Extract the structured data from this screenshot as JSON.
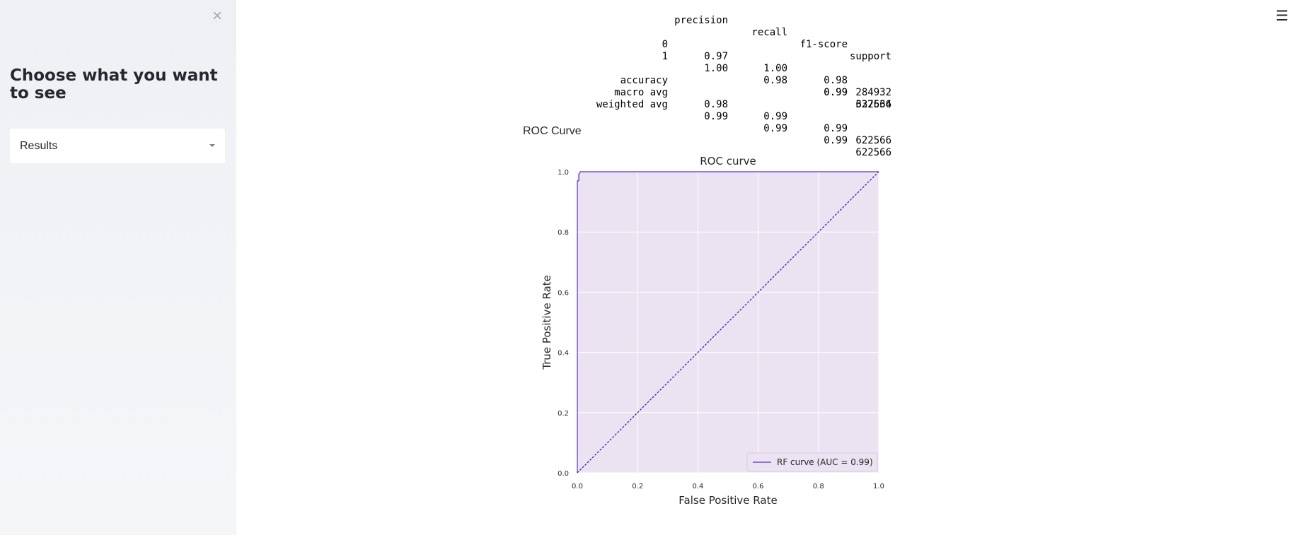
{
  "sidebar": {
    "close_icon": "close-icon",
    "title": "Choose what you want to see",
    "select": {
      "value": "Results",
      "icon": "chevron-down-icon"
    }
  },
  "header": {
    "menu_icon": "hamburger-menu-icon",
    "menu_glyph": "☰",
    "close_glyph": "×"
  },
  "report": {
    "columns": [
      "precision",
      "recall",
      "f1-score",
      "support"
    ],
    "class_rows": [
      {
        "label": "0",
        "precision": "0.97",
        "recall": "1.00",
        "f1": "0.98",
        "support": "284932"
      },
      {
        "label": "1",
        "precision": "1.00",
        "recall": "0.98",
        "f1": "0.99",
        "support": "337634"
      }
    ],
    "summary_rows": [
      {
        "label": "accuracy",
        "precision": "",
        "recall": "",
        "f1": "0.99",
        "support": "622566"
      },
      {
        "label": "macro avg",
        "precision": "0.98",
        "recall": "0.99",
        "f1": "0.99",
        "support": "622566"
      },
      {
        "label": "weighted avg",
        "precision": "0.99",
        "recall": "0.99",
        "f1": "0.99",
        "support": "622566"
      }
    ]
  },
  "roc_section": {
    "heading": "ROC Curve"
  },
  "chart_data": {
    "type": "line",
    "title": "ROC curve",
    "xlabel": "False Positive Rate",
    "ylabel": "True Positive Rate",
    "xlim": [
      0.0,
      1.0
    ],
    "ylim": [
      0.0,
      1.0
    ],
    "xticks": [
      "0.0",
      "0.2",
      "0.4",
      "0.6",
      "0.8",
      "1.0"
    ],
    "yticks": [
      "0.0",
      "0.2",
      "0.4",
      "0.6",
      "0.8",
      "1.0"
    ],
    "grid": true,
    "legend_position": "lower-right",
    "background_color": "#ebe3f2",
    "series": [
      {
        "name": "RF curve (AUC = 0.99)",
        "color": "#5b2fc9",
        "style": "solid",
        "x": [
          0.0,
          0.0,
          0.0,
          0.005,
          0.005,
          0.01,
          1.0
        ],
        "y": [
          0.0,
          0.5,
          0.97,
          0.97,
          0.99,
          1.0,
          1.0
        ]
      },
      {
        "name": "",
        "color": "#2b1a9a",
        "style": "dashed",
        "x": [
          0.0,
          1.0
        ],
        "y": [
          0.0,
          1.0
        ]
      }
    ]
  }
}
